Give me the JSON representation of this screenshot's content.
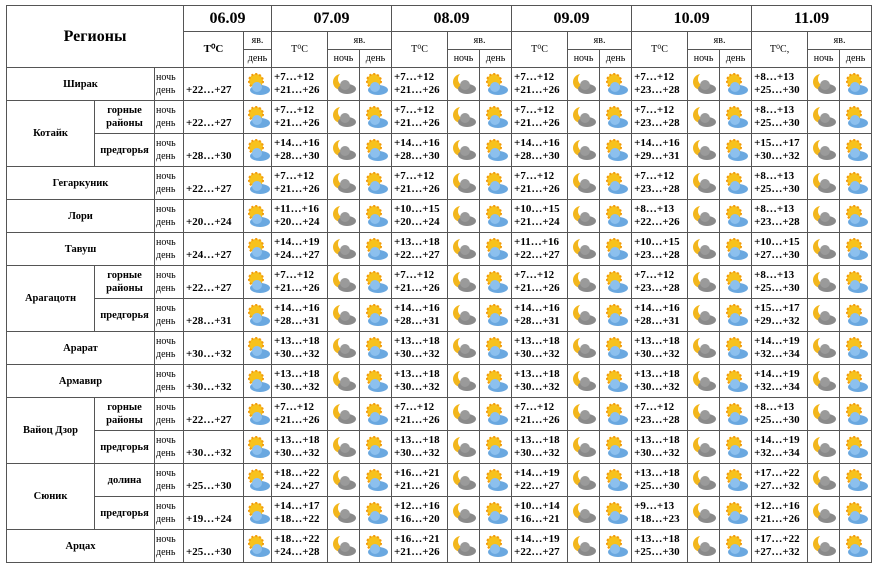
{
  "header": {
    "regions": "Регионы",
    "dates": [
      "06.09",
      "07.09",
      "08.09",
      "09.09",
      "10.09",
      "11.09"
    ],
    "temp_labels": [
      "T⁰C",
      "T⁰C",
      "T⁰C",
      "T⁰C",
      "T⁰C",
      "T⁰C,"
    ],
    "icon_label": "яв.",
    "night": "ночь",
    "day": "день"
  },
  "regions": [
    {
      "name": "Ширак",
      "parts": [
        {
          "days": [
            {
              "day": "+22…+27"
            },
            {
              "night": "+7…+12",
              "day": "+21…+26"
            },
            {
              "night": "+7…+12",
              "day": "+21…+26"
            },
            {
              "night": "+7…+12",
              "day": "+21…+26"
            },
            {
              "night": "+7…+12",
              "day": "+23…+28"
            },
            {
              "night": "+8…+13",
              "day": "+25…+30"
            }
          ]
        }
      ]
    },
    {
      "name": "Котайк",
      "parts": [
        {
          "sub": "горные районы",
          "days": [
            {
              "day": "+22…+27"
            },
            {
              "night": "+7…+12",
              "day": "+21…+26"
            },
            {
              "night": "+7…+12",
              "day": "+21…+26"
            },
            {
              "night": "+7…+12",
              "day": "+21…+26"
            },
            {
              "night": "+7…+12",
              "day": "+23…+28"
            },
            {
              "night": "+8…+13",
              "day": "+25…+30"
            }
          ]
        },
        {
          "sub": "предгорья",
          "days": [
            {
              "day": "+28…+30"
            },
            {
              "night": "+14…+16",
              "day": "+28…+30"
            },
            {
              "night": "+14…+16",
              "day": "+28…+30"
            },
            {
              "night": "+14…+16",
              "day": "+28…+30"
            },
            {
              "night": "+14…+16",
              "day": "+29…+31"
            },
            {
              "night": "+15…+17",
              "day": "+30…+32"
            }
          ]
        }
      ]
    },
    {
      "name": "Гегаркуник",
      "parts": [
        {
          "days": [
            {
              "day": "+22…+27"
            },
            {
              "night": "+7…+12",
              "day": "+21…+26"
            },
            {
              "night": "+7…+12",
              "day": "+21…+26"
            },
            {
              "night": "+7…+12",
              "day": "+21…+26"
            },
            {
              "night": "+7…+12",
              "day": "+23…+28"
            },
            {
              "night": "+8…+13",
              "day": "+25…+30"
            }
          ]
        }
      ]
    },
    {
      "name": "Лори",
      "parts": [
        {
          "days": [
            {
              "day": "+20…+24"
            },
            {
              "night": "+11…+16",
              "day": "+20…+24"
            },
            {
              "night": "+10…+15",
              "day": "+20…+24"
            },
            {
              "night": "+10…+15",
              "day": "+21…+24"
            },
            {
              "night": "+8…+13",
              "day": "+22…+26"
            },
            {
              "night": "+8…+13",
              "day": "+23…+28"
            }
          ]
        }
      ]
    },
    {
      "name": "Тавуш",
      "parts": [
        {
          "days": [
            {
              "day": "+24…+27"
            },
            {
              "night": "+14…+19",
              "day": "+24…+27"
            },
            {
              "night": "+13…+18",
              "day": "+22…+27"
            },
            {
              "night": "+11…+16",
              "day": "+22…+27"
            },
            {
              "night": "+10…+15",
              "day": "+23…+28"
            },
            {
              "night": "+10…+15",
              "day": "+27…+30"
            }
          ]
        }
      ]
    },
    {
      "name": "Арагацотн",
      "parts": [
        {
          "sub": "горные районы",
          "days": [
            {
              "day": "+22…+27"
            },
            {
              "night": "+7…+12",
              "day": "+21…+26"
            },
            {
              "night": "+7…+12",
              "day": "+21…+26"
            },
            {
              "night": "+7…+12",
              "day": "+21…+26"
            },
            {
              "night": "+7…+12",
              "day": "+23…+28"
            },
            {
              "night": "+8…+13",
              "day": "+25…+30"
            }
          ]
        },
        {
          "sub": "предгорья",
          "days": [
            {
              "day": "+28…+31"
            },
            {
              "night": "+14…+16",
              "day": "+28…+31"
            },
            {
              "night": "+14…+16",
              "day": "+28…+31"
            },
            {
              "night": "+14…+16",
              "day": "+28…+31"
            },
            {
              "night": "+14…+16",
              "day": "+28…+31"
            },
            {
              "night": "+15…+17",
              "day": "+29…+32"
            }
          ]
        }
      ]
    },
    {
      "name": "Арарат",
      "parts": [
        {
          "days": [
            {
              "day": "+30…+32"
            },
            {
              "night": "+13…+18",
              "day": "+30…+32"
            },
            {
              "night": "+13…+18",
              "day": "+30…+32"
            },
            {
              "night": "+13…+18",
              "day": "+30…+32"
            },
            {
              "night": "+13…+18",
              "day": "+30…+32"
            },
            {
              "night": "+14…+19",
              "day": "+32…+34"
            }
          ]
        }
      ]
    },
    {
      "name": "Армавир",
      "parts": [
        {
          "days": [
            {
              "day": "+30…+32"
            },
            {
              "night": "+13…+18",
              "day": "+30…+32"
            },
            {
              "night": "+13…+18",
              "day": "+30…+32"
            },
            {
              "night": "+13…+18",
              "day": "+30…+32"
            },
            {
              "night": "+13…+18",
              "day": "+30…+32"
            },
            {
              "night": "+14…+19",
              "day": "+32…+34"
            }
          ]
        }
      ]
    },
    {
      "name": "Вайоц Дзор",
      "parts": [
        {
          "sub": "горные районы",
          "days": [
            {
              "day": "+22…+27"
            },
            {
              "night": "+7…+12",
              "day": "+21…+26"
            },
            {
              "night": "+7…+12",
              "day": "+21…+26"
            },
            {
              "night": "+7…+12",
              "day": "+21…+26"
            },
            {
              "night": "+7…+12",
              "day": "+23…+28"
            },
            {
              "night": "+8…+13",
              "day": "+25…+30"
            }
          ]
        },
        {
          "sub": "предгорья",
          "days": [
            {
              "day": "+30…+32"
            },
            {
              "night": "+13…+18",
              "day": "+30…+32"
            },
            {
              "night": "+13…+18",
              "day": "+30…+32"
            },
            {
              "night": "+13…+18",
              "day": "+30…+32"
            },
            {
              "night": "+13…+18",
              "day": "+30…+32"
            },
            {
              "night": "+14…+19",
              "day": "+32…+34"
            }
          ]
        }
      ]
    },
    {
      "name": "Сюник",
      "parts": [
        {
          "sub": "долина",
          "days": [
            {
              "day": "+25…+30"
            },
            {
              "night": "+18…+22",
              "day": "+24…+27"
            },
            {
              "night": "+16…+21",
              "day": "+21…+26"
            },
            {
              "night": "+14…+19",
              "day": "+22…+27"
            },
            {
              "night": "+13…+18",
              "day": "+25…+30"
            },
            {
              "night": "+17…+22",
              "day": "+27…+32"
            }
          ]
        },
        {
          "sub": "предгорья",
          "days": [
            {
              "day": "+19…+24"
            },
            {
              "night": "+14…+17",
              "day": "+18…+22"
            },
            {
              "night": "+12…+16",
              "day": "+16…+20"
            },
            {
              "night": "+10…+14",
              "day": "+16…+21"
            },
            {
              "night": "+9…+13",
              "day": "+18…+23"
            },
            {
              "night": "+12…+16",
              "day": "+21…+26"
            }
          ]
        }
      ]
    },
    {
      "name": "Арцах",
      "parts": [
        {
          "days": [
            {
              "day": "+25…+30"
            },
            {
              "night": "+18…+22",
              "day": "+24…+28"
            },
            {
              "night": "+16…+21",
              "day": "+21…+26"
            },
            {
              "night": "+14…+19",
              "day": "+22…+27"
            },
            {
              "night": "+13…+18",
              "day": "+25…+30"
            },
            {
              "night": "+17…+22",
              "day": "+27…+32"
            }
          ]
        }
      ]
    }
  ]
}
